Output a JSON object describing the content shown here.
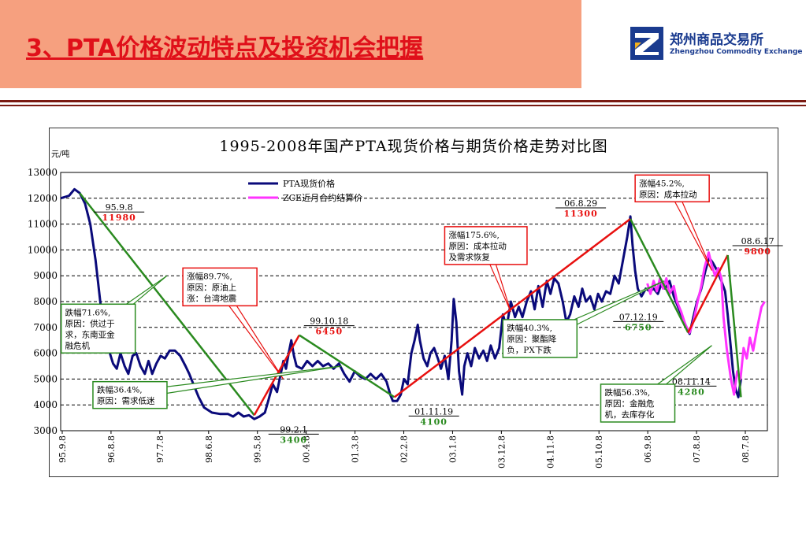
{
  "header": {
    "title": "3、PTA价格波动特点及投资机会把握",
    "logo_cn": "郑州商品交易所",
    "logo_en": "Zhengzhou Commodity Exchange"
  },
  "colors": {
    "header_bg": "#f6a07f",
    "title": "#e0101a",
    "brand": "#1a3b8f",
    "spot": "#0a0a7a",
    "futures": "#ff33ff",
    "trend_down": "#2a8a1f",
    "trend_up": "#e8100f"
  },
  "chart_data": {
    "type": "line",
    "title": "1995-2008年国产PTA现货价格与期货价格走势对比图",
    "ylabel": "元/吨",
    "ylim": [
      3000,
      13000
    ],
    "yticks": [
      "13000",
      "12000",
      "11000",
      "10000",
      "9000",
      "8000",
      "7000",
      "6000",
      "5000",
      "4000",
      "3000"
    ],
    "xticks": [
      "95.9.8",
      "96.8.8",
      "97.7.8",
      "98.6.8",
      "99.5.8",
      "00.4.8",
      "01.3.8",
      "02.2.8",
      "03.1.8",
      "03.12.8",
      "04.11.8",
      "05.10.8",
      "06.9.8",
      "07.8.8",
      "08.7.8"
    ],
    "xrange_years": [
      1995.69,
      2009.05
    ],
    "grid": true,
    "legend_position": "top-center",
    "series": [
      {
        "name": "PTA现货价格",
        "color": "#0a0a7a",
        "points": [
          [
            1995.69,
            12000
          ],
          [
            1995.85,
            12100
          ],
          [
            1995.95,
            12350
          ],
          [
            1996.05,
            12200
          ],
          [
            1996.15,
            11800
          ],
          [
            1996.25,
            11000
          ],
          [
            1996.35,
            9600
          ],
          [
            1996.45,
            7800
          ],
          [
            1996.55,
            6600
          ],
          [
            1996.62,
            6000
          ],
          [
            1996.68,
            5600
          ],
          [
            1996.75,
            5400
          ],
          [
            1996.82,
            6000
          ],
          [
            1996.9,
            5500
          ],
          [
            1996.97,
            5200
          ],
          [
            1997.05,
            5900
          ],
          [
            1997.12,
            6000
          ],
          [
            1997.2,
            5500
          ],
          [
            1997.28,
            5200
          ],
          [
            1997.35,
            5700
          ],
          [
            1997.42,
            5200
          ],
          [
            1997.5,
            5600
          ],
          [
            1997.58,
            5900
          ],
          [
            1997.66,
            5800
          ],
          [
            1997.75,
            6100
          ],
          [
            1997.85,
            6100
          ],
          [
            1997.95,
            5900
          ],
          [
            1998.05,
            5500
          ],
          [
            1998.12,
            5200
          ],
          [
            1998.2,
            4800
          ],
          [
            1998.3,
            4300
          ],
          [
            1998.4,
            3900
          ],
          [
            1998.55,
            3700
          ],
          [
            1998.7,
            3650
          ],
          [
            1998.85,
            3650
          ],
          [
            1998.95,
            3550
          ],
          [
            1999.05,
            3700
          ],
          [
            1999.15,
            3550
          ],
          [
            1999.25,
            3600
          ],
          [
            1999.35,
            3450
          ],
          [
            1999.45,
            3550
          ],
          [
            1999.55,
            3700
          ],
          [
            1999.62,
            4200
          ],
          [
            1999.7,
            4800
          ],
          [
            1999.78,
            4500
          ],
          [
            1999.85,
            5200
          ],
          [
            1999.9,
            5700
          ],
          [
            1999.95,
            5400
          ],
          [
            2000.0,
            6000
          ],
          [
            2000.05,
            6500
          ],
          [
            2000.1,
            5900
          ],
          [
            2000.15,
            5500
          ],
          [
            2000.25,
            5400
          ],
          [
            2000.35,
            5700
          ],
          [
            2000.45,
            5500
          ],
          [
            2000.55,
            5700
          ],
          [
            2000.65,
            5500
          ],
          [
            2000.75,
            5600
          ],
          [
            2000.85,
            5400
          ],
          [
            2000.95,
            5600
          ],
          [
            2001.05,
            5200
          ],
          [
            2001.15,
            4900
          ],
          [
            2001.25,
            5300
          ],
          [
            2001.35,
            5100
          ],
          [
            2001.45,
            5000
          ],
          [
            2001.55,
            5200
          ],
          [
            2001.65,
            5000
          ],
          [
            2001.75,
            5200
          ],
          [
            2001.85,
            4900
          ],
          [
            2001.92,
            4400
          ],
          [
            2001.97,
            4150
          ],
          [
            2002.05,
            4150
          ],
          [
            2002.12,
            4400
          ],
          [
            2002.18,
            5000
          ],
          [
            2002.25,
            4800
          ],
          [
            2002.32,
            6000
          ],
          [
            2002.38,
            6500
          ],
          [
            2002.44,
            7100
          ],
          [
            2002.48,
            6500
          ],
          [
            2002.55,
            5800
          ],
          [
            2002.62,
            5500
          ],
          [
            2002.68,
            6000
          ],
          [
            2002.75,
            6200
          ],
          [
            2002.82,
            5800
          ],
          [
            2002.88,
            5400
          ],
          [
            2002.95,
            5900
          ],
          [
            2003.02,
            5000
          ],
          [
            2003.08,
            6500
          ],
          [
            2003.12,
            8100
          ],
          [
            2003.17,
            7200
          ],
          [
            2003.22,
            5300
          ],
          [
            2003.28,
            4400
          ],
          [
            2003.32,
            5500
          ],
          [
            2003.38,
            6000
          ],
          [
            2003.45,
            5500
          ],
          [
            2003.52,
            6200
          ],
          [
            2003.6,
            5800
          ],
          [
            2003.68,
            6100
          ],
          [
            2003.75,
            5700
          ],
          [
            2003.82,
            6300
          ],
          [
            2003.9,
            5800
          ],
          [
            2003.98,
            6200
          ],
          [
            2004.05,
            7500
          ],
          [
            2004.12,
            7000
          ],
          [
            2004.2,
            8000
          ],
          [
            2004.28,
            7400
          ],
          [
            2004.35,
            7800
          ],
          [
            2004.42,
            7400
          ],
          [
            2004.5,
            8000
          ],
          [
            2004.58,
            8400
          ],
          [
            2004.65,
            7700
          ],
          [
            2004.72,
            8600
          ],
          [
            2004.8,
            7800
          ],
          [
            2004.88,
            8800
          ],
          [
            2004.95,
            8300
          ],
          [
            2005.02,
            8900
          ],
          [
            2005.1,
            8700
          ],
          [
            2005.18,
            8000
          ],
          [
            2005.25,
            7200
          ],
          [
            2005.32,
            7500
          ],
          [
            2005.4,
            8200
          ],
          [
            2005.48,
            7800
          ],
          [
            2005.55,
            8500
          ],
          [
            2005.62,
            8000
          ],
          [
            2005.7,
            8200
          ],
          [
            2005.78,
            7700
          ],
          [
            2005.85,
            8300
          ],
          [
            2005.92,
            8000
          ],
          [
            2006.0,
            8400
          ],
          [
            2006.08,
            8300
          ],
          [
            2006.16,
            9000
          ],
          [
            2006.24,
            8700
          ],
          [
            2006.32,
            9600
          ],
          [
            2006.4,
            10500
          ],
          [
            2006.46,
            11300
          ],
          [
            2006.5,
            10200
          ],
          [
            2006.55,
            9200
          ],
          [
            2006.6,
            8500
          ],
          [
            2006.67,
            8200
          ],
          [
            2006.75,
            8500
          ],
          [
            2006.83,
            8400
          ],
          [
            2006.9,
            8500
          ],
          [
            2006.98,
            8300
          ],
          [
            2007.05,
            8700
          ],
          [
            2007.12,
            8500
          ],
          [
            2007.2,
            8800
          ],
          [
            2007.28,
            8200
          ],
          [
            2007.36,
            7800
          ],
          [
            2007.44,
            7400
          ],
          [
            2007.52,
            7000
          ],
          [
            2007.58,
            6750
          ],
          [
            2007.65,
            7400
          ],
          [
            2007.72,
            8000
          ],
          [
            2007.8,
            8500
          ],
          [
            2007.88,
            9200
          ],
          [
            2007.95,
            9700
          ],
          [
            2008.02,
            9500
          ],
          [
            2008.1,
            9200
          ],
          [
            2008.18,
            8800
          ],
          [
            2008.25,
            8400
          ],
          [
            2008.3,
            7500
          ],
          [
            2008.35,
            6400
          ],
          [
            2008.4,
            5300
          ],
          [
            2008.45,
            4600
          ],
          [
            2008.5,
            4300
          ],
          [
            2008.55,
            5000
          ]
        ]
      },
      {
        "name": "ZCE近月合约结算价",
        "color": "#ff33ff",
        "points": [
          [
            2006.78,
            8700
          ],
          [
            2006.84,
            8300
          ],
          [
            2006.9,
            8800
          ],
          [
            2006.96,
            8400
          ],
          [
            2007.02,
            8900
          ],
          [
            2007.08,
            8500
          ],
          [
            2007.14,
            8900
          ],
          [
            2007.2,
            8300
          ],
          [
            2007.28,
            8600
          ],
          [
            2007.34,
            8000
          ],
          [
            2007.42,
            7600
          ],
          [
            2007.5,
            7100
          ],
          [
            2007.58,
            6800
          ],
          [
            2007.66,
            7300
          ],
          [
            2007.72,
            7900
          ],
          [
            2007.8,
            8600
          ],
          [
            2007.86,
            9300
          ],
          [
            2007.94,
            9900
          ],
          [
            2008.0,
            9400
          ],
          [
            2008.06,
            9000
          ],
          [
            2008.12,
            9300
          ],
          [
            2008.18,
            8900
          ],
          [
            2008.22,
            7400
          ],
          [
            2008.28,
            6200
          ],
          [
            2008.36,
            5000
          ],
          [
            2008.42,
            4400
          ],
          [
            2008.48,
            5300
          ],
          [
            2008.54,
            5000
          ],
          [
            2008.6,
            6200
          ],
          [
            2008.66,
            5800
          ],
          [
            2008.72,
            6600
          ],
          [
            2008.78,
            6100
          ],
          [
            2008.86,
            7000
          ],
          [
            2008.94,
            7800
          ],
          [
            2009.0,
            8000
          ]
        ]
      }
    ],
    "trend_lines": [
      {
        "color": "green",
        "points": [
          [
            1996.05,
            12200
          ],
          [
            1999.35,
            3600
          ]
        ]
      },
      {
        "color": "red",
        "points": [
          [
            1999.35,
            3600
          ],
          [
            2000.2,
            6700
          ]
        ]
      },
      {
        "color": "green",
        "points": [
          [
            2000.2,
            6700
          ],
          [
            2002.0,
            4300
          ]
        ]
      },
      {
        "color": "red",
        "points": [
          [
            2002.0,
            4300
          ],
          [
            2006.46,
            11200
          ]
        ]
      },
      {
        "color": "green",
        "points": [
          [
            2006.46,
            11200
          ],
          [
            2007.55,
            6800
          ]
        ]
      },
      {
        "color": "red",
        "points": [
          [
            2007.55,
            6800
          ],
          [
            2008.3,
            9800
          ]
        ]
      },
      {
        "color": "green",
        "points": [
          [
            2008.3,
            9800
          ],
          [
            2008.55,
            4300
          ]
        ]
      }
    ],
    "point_labels": [
      {
        "date": "95.9.8",
        "value": "11980",
        "value_color": "red",
        "x": 1996.05,
        "y": 12200,
        "place": "right-below"
      },
      {
        "date": "99.10.18",
        "value": "6450",
        "value_color": "red",
        "x": 2000.2,
        "y": 6700,
        "place": "right-above"
      },
      {
        "date": "99.2.1",
        "value": "3400",
        "value_color": "green",
        "x": 1999.35,
        "y": 3600,
        "place": "right-below"
      },
      {
        "date": "01.11.19",
        "value": "4100",
        "value_color": "green",
        "x": 2002.0,
        "y": 4300,
        "place": "right-below"
      },
      {
        "date": "06.8.29",
        "value": "11300",
        "value_color": "red",
        "x": 2006.46,
        "y": 11200,
        "place": "left-above"
      },
      {
        "date": "07.12.19",
        "value": "6750",
        "value_color": "green",
        "x": 2007.55,
        "y": 6800,
        "place": "left-above"
      },
      {
        "date": "08.6.17",
        "value": "9800",
        "value_color": "red",
        "x": 2008.3,
        "y": 9800,
        "place": "right-above"
      },
      {
        "date": "08.11.14",
        "value": "4280",
        "value_color": "green",
        "x": 2008.55,
        "y": 4300,
        "place": "left-above"
      }
    ],
    "annotations": [
      {
        "lines": [
          "跌幅71.6%,",
          "原因：供过于",
          "求，东南亚金",
          "融危机"
        ],
        "border": "green",
        "box_year": 1995.7,
        "box_value": 7900,
        "target_year": 1997.7,
        "target_value": 9000
      },
      {
        "lines": [
          "涨幅89.7%,",
          "原因：原油上",
          "涨：台湾地震"
        ],
        "border": "red",
        "box_year": 1998.0,
        "box_value": 9300,
        "target_year": 1999.9,
        "target_value": 5000
      },
      {
        "lines": [
          "跌幅36.4%,",
          "原因：需求低迷"
        ],
        "border": "green",
        "box_year": 1996.3,
        "box_value": 4900,
        "target_year": 2001.0,
        "target_value": 5500
      },
      {
        "lines": [
          "涨幅175.6%,",
          "原因：成本拉动",
          "及需求恢复"
        ],
        "border": "red",
        "box_year": 2002.95,
        "box_value": 10900,
        "target_year": 2004.2,
        "target_value": 7600
      },
      {
        "lines": [
          "跌幅40.3%,",
          "原因：聚酯降",
          "负，PX下跌"
        ],
        "border": "green",
        "box_year": 2004.05,
        "box_value": 7300,
        "target_year": 2007.1,
        "target_value": 8800
      },
      {
        "lines": [
          "涨幅45.2%,",
          "原因：成本拉动"
        ],
        "border": "red",
        "box_year": 2006.55,
        "box_value": 12900,
        "target_year": 2008.0,
        "target_value": 9200
      },
      {
        "lines": [
          "跌幅56.3%,",
          "原因：金融危",
          "机，去库存化"
        ],
        "border": "green",
        "box_year": 2005.9,
        "box_value": 4800,
        "target_year": 2008.0,
        "target_value": 6300
      }
    ]
  }
}
